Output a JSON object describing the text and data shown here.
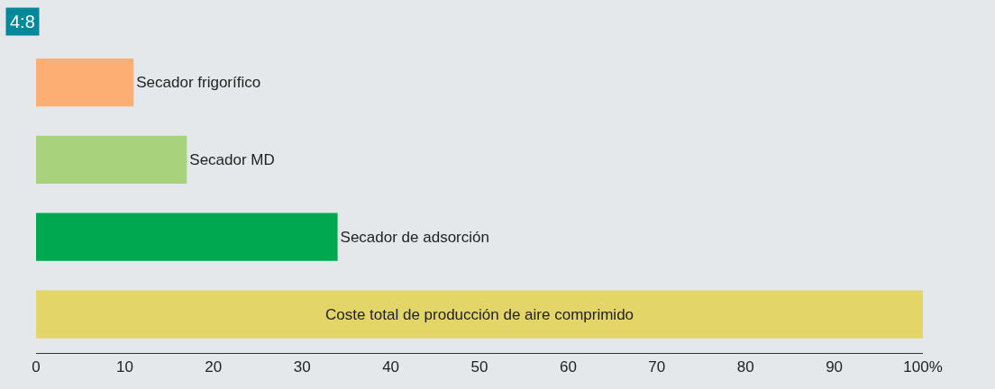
{
  "chart_data": {
    "type": "bar",
    "orientation": "horizontal",
    "title": "4:8",
    "categories": [
      "Secador frigorífico",
      "Secador MD",
      "Secador de adsorción",
      "Coste total de producción de aire comprimido"
    ],
    "values": [
      11,
      17,
      34,
      100
    ],
    "colors": [
      "#fdae72",
      "#a8d37c",
      "#00a94f",
      "#e3d567"
    ],
    "xlim": [
      0,
      100
    ],
    "xticks": [
      0,
      10,
      20,
      30,
      40,
      50,
      60,
      70,
      80,
      90,
      {
        "value": 100,
        "label": "100%"
      }
    ],
    "tick_labels": "x",
    "grid": false,
    "legend": false
  }
}
